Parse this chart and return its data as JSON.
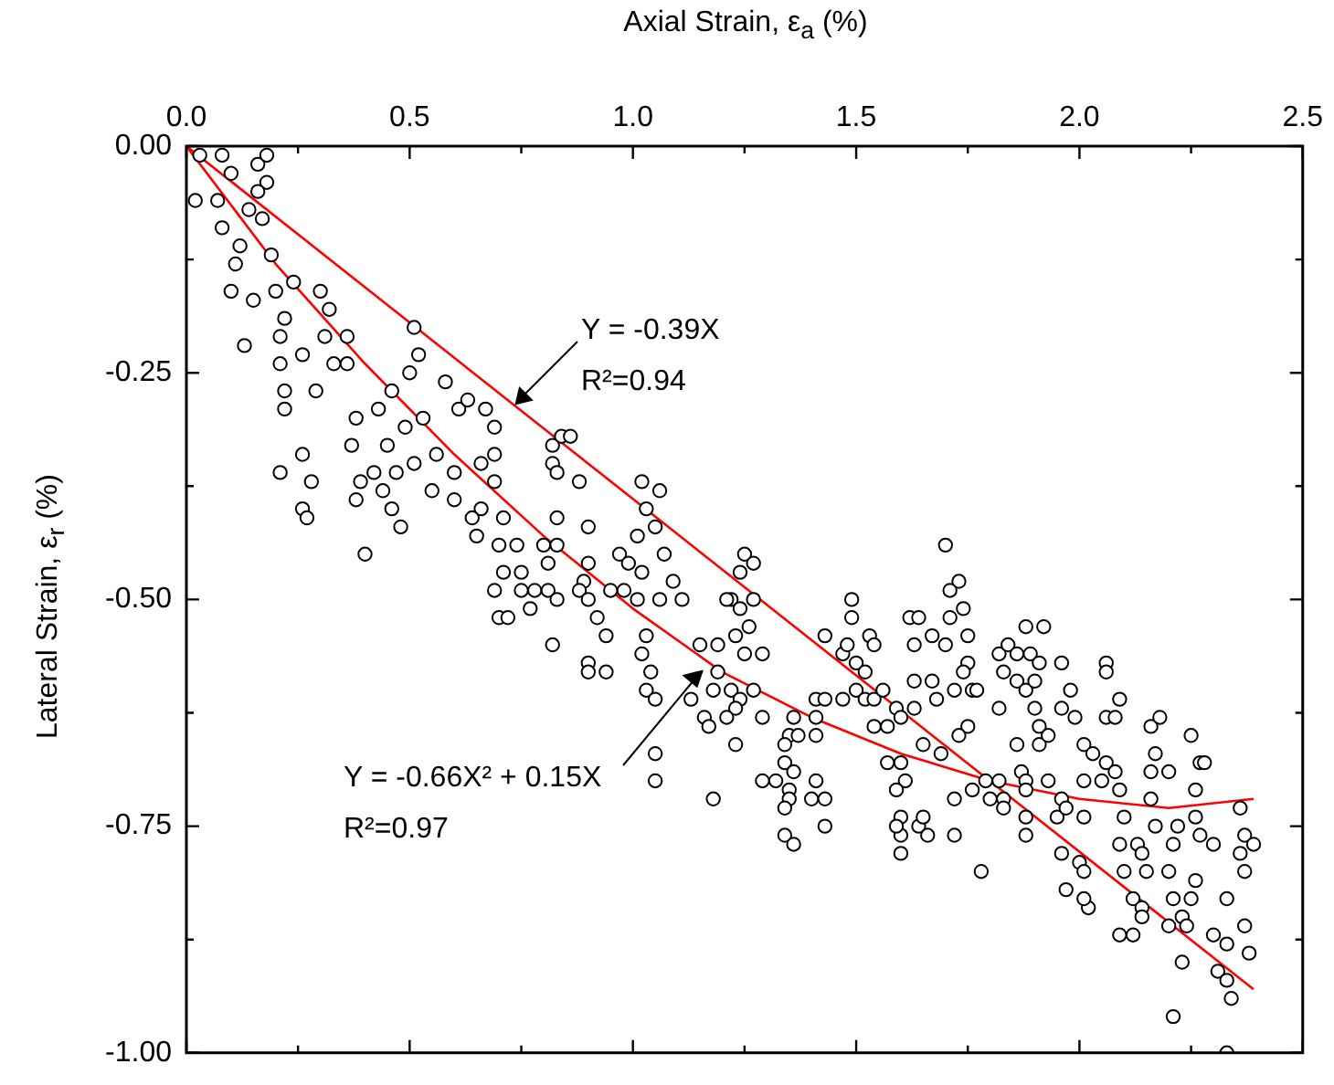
{
  "chart_data": {
    "type": "scatter",
    "xlabel": "Axial Strain, ε$_{a}$ (%)",
    "ylabel": "Lateral Strain, ε$_{r}$ (%)",
    "xlim": [
      0,
      2.5
    ],
    "ylim": [
      -1,
      0
    ],
    "xticks": [
      {
        "value": 0,
        "label": "0.0"
      },
      {
        "value": 0.25,
        "label": null
      },
      {
        "value": 0.5,
        "label": "0.5"
      },
      {
        "value": 0.75,
        "label": null
      },
      {
        "value": 1,
        "label": "1.0"
      },
      {
        "value": 1.25,
        "label": null
      },
      {
        "value": 1.5,
        "label": "1.5"
      },
      {
        "value": 1.75,
        "label": null
      },
      {
        "value": 2,
        "label": "2.0"
      },
      {
        "value": 2.25,
        "label": null
      },
      {
        "value": 2.5,
        "label": "2.5"
      }
    ],
    "yticks": [
      {
        "value": 0,
        "label": "0.00"
      },
      {
        "value": -0.125,
        "label": null
      },
      {
        "value": -0.25,
        "label": "-0.25"
      },
      {
        "value": -0.375,
        "label": null
      },
      {
        "value": -0.5,
        "label": "-0.50"
      },
      {
        "value": -0.625,
        "label": null
      },
      {
        "value": -0.75,
        "label": "-0.75"
      },
      {
        "value": -0.875,
        "label": null
      },
      {
        "value": -1,
        "label": "-1.00"
      }
    ],
    "grid": false,
    "legend": false,
    "marker": "circle",
    "series": [
      {
        "type": "scatter",
        "color": "#000000",
        "x": [
          0.03,
          0.08,
          0.1,
          0.02,
          0.16,
          0.18,
          0.18,
          0.16,
          0.07,
          0.08,
          0.14,
          0.17,
          0.12,
          0.11,
          0.19,
          0.1,
          0.15,
          0.2,
          0.24,
          0.3,
          0.22,
          0.21,
          0.13,
          0.26,
          0.32,
          0.31,
          0.36,
          0.21,
          0.22,
          0.22,
          0.29,
          0.33,
          0.36,
          0.51,
          0.52,
          0.5,
          0.46,
          0.38,
          0.43,
          0.49,
          0.53,
          0.58,
          0.61,
          0.63,
          0.67,
          0.69,
          0.37,
          0.45,
          0.26,
          0.21,
          0.28,
          0.39,
          0.42,
          0.47,
          0.51,
          0.56,
          0.6,
          0.66,
          0.69,
          0.69,
          0.26,
          0.27,
          0.38,
          0.44,
          0.46,
          0.48,
          0.55,
          0.6,
          0.66,
          0.64,
          0.65,
          0.71,
          0.4,
          0.7,
          0.74,
          0.8,
          0.83,
          0.81,
          0.71,
          0.69,
          0.75,
          0.75,
          0.78,
          0.7,
          0.72,
          0.77,
          0.81,
          0.83,
          0.82,
          0.82,
          0.84,
          0.82,
          0.86,
          0.83,
          0.88,
          1.02,
          1.06,
          1.03,
          1.01,
          1.05,
          0.9,
          0.83,
          0.97,
          0.99,
          1.02,
          1.07,
          0.9,
          0.89,
          0.88,
          0.95,
          0.98,
          1.01,
          1.06,
          1.09,
          1.11,
          0.9,
          0.92,
          0.94,
          1.03,
          1.02,
          1.04,
          0.9,
          0.9,
          0.94,
          1.03,
          1.05,
          1.25,
          1.27,
          1.24,
          1.22,
          1.24,
          1.27,
          1.21,
          1.26,
          1.23,
          1.25,
          1.29,
          1.15,
          1.19,
          1.19,
          1.22,
          1.18,
          1.24,
          1.27,
          1.13,
          1.23,
          1.29,
          1.16,
          1.17,
          1.21,
          1.23,
          1.05,
          1.05,
          1.18,
          1.36,
          1.35,
          1.34,
          1.37,
          1.41,
          1.41,
          1.43,
          1.41,
          1.34,
          1.36,
          1.29,
          1.32,
          1.35,
          1.35,
          1.34,
          1.41,
          1.4,
          1.43,
          1.43,
          1.34,
          1.36,
          1.43,
          1.49,
          1.49,
          1.47,
          1.48,
          1.5,
          1.53,
          1.54,
          1.52,
          1.47,
          1.5,
          1.52,
          1.54,
          1.56,
          1.59,
          1.57,
          1.54,
          1.6,
          1.62,
          1.64,
          1.63,
          1.67,
          1.63,
          1.67,
          1.7,
          1.57,
          1.6,
          1.61,
          1.6,
          1.6,
          1.64,
          1.66,
          1.6,
          1.65,
          1.73,
          1.71,
          1.74,
          1.71,
          1.75,
          1.7,
          1.75,
          1.74,
          1.72,
          1.76,
          1.77,
          1.68,
          1.63,
          1.75,
          1.73,
          1.69,
          1.59,
          1.65,
          1.59,
          1.72,
          1.72,
          1.76,
          1.78,
          1.8,
          1.79,
          1.82,
          1.84,
          1.88,
          1.92,
          1.86,
          1.89,
          1.91,
          1.83,
          1.86,
          1.88,
          1.9,
          1.96,
          1.98,
          1.96,
          1.99,
          1.82,
          1.9,
          1.91,
          1.91,
          1.93,
          1.86,
          1.87,
          1.88,
          1.82,
          1.83,
          1.83,
          1.88,
          1.88,
          1.88,
          1.93,
          1.95,
          1.96,
          1.97,
          1.96,
          1.97,
          2.0,
          2.01,
          2.02,
          2.01,
          2.06,
          2.06,
          2.09,
          2.06,
          2.08,
          2.01,
          2.03,
          2.06,
          2.08,
          2.01,
          2.05,
          2.09,
          2.01,
          2.1,
          2.09,
          2.13,
          2.14,
          2.15,
          2.1,
          2.12,
          2.14,
          2.14,
          2.09,
          2.12,
          2.16,
          2.18,
          2.17,
          2.16,
          2.2,
          2.16,
          2.17,
          2.22,
          2.21,
          2.2,
          2.26,
          2.27,
          2.3,
          2.21,
          2.25,
          2.23,
          2.24,
          2.2,
          2.26,
          2.25,
          2.27,
          2.28,
          2.26,
          2.36,
          2.37,
          2.39,
          2.36,
          2.37,
          2.33,
          2.37,
          2.3,
          2.33,
          2.38,
          2.23,
          2.31,
          2.33,
          2.34,
          2.21,
          2.33
        ],
        "values": [
          -0.01,
          -0.01,
          -0.03,
          -0.06,
          -0.02,
          -0.01,
          -0.04,
          -0.05,
          -0.06,
          -0.09,
          -0.07,
          -0.08,
          -0.11,
          -0.13,
          -0.12,
          -0.16,
          -0.17,
          -0.16,
          -0.15,
          -0.16,
          -0.19,
          -0.21,
          -0.22,
          -0.23,
          -0.18,
          -0.21,
          -0.21,
          -0.24,
          -0.27,
          -0.29,
          -0.27,
          -0.24,
          -0.24,
          -0.2,
          -0.23,
          -0.25,
          -0.27,
          -0.3,
          -0.29,
          -0.31,
          -0.3,
          -0.26,
          -0.29,
          -0.28,
          -0.29,
          -0.31,
          -0.33,
          -0.33,
          -0.34,
          -0.36,
          -0.37,
          -0.37,
          -0.36,
          -0.36,
          -0.35,
          -0.34,
          -0.36,
          -0.35,
          -0.34,
          -0.37,
          -0.4,
          -0.41,
          -0.39,
          -0.38,
          -0.4,
          -0.42,
          -0.38,
          -0.39,
          -0.4,
          -0.41,
          -0.43,
          -0.41,
          -0.45,
          -0.44,
          -0.44,
          -0.44,
          -0.41,
          -0.46,
          -0.47,
          -0.49,
          -0.47,
          -0.49,
          -0.49,
          -0.52,
          -0.52,
          -0.51,
          -0.49,
          -0.5,
          -0.55,
          -0.33,
          -0.32,
          -0.35,
          -0.32,
          -0.36,
          -0.37,
          -0.37,
          -0.38,
          -0.4,
          -0.43,
          -0.42,
          -0.42,
          -0.44,
          -0.45,
          -0.46,
          -0.47,
          -0.45,
          -0.46,
          -0.48,
          -0.49,
          -0.49,
          -0.49,
          -0.5,
          -0.5,
          -0.48,
          -0.5,
          -0.5,
          -0.52,
          -0.54,
          -0.54,
          -0.56,
          -0.58,
          -0.57,
          -0.58,
          -0.58,
          -0.6,
          -0.61,
          -0.45,
          -0.46,
          -0.47,
          -0.5,
          -0.51,
          -0.5,
          -0.5,
          -0.53,
          -0.54,
          -0.56,
          -0.56,
          -0.55,
          -0.55,
          -0.58,
          -0.6,
          -0.6,
          -0.61,
          -0.6,
          -0.61,
          -0.62,
          -0.63,
          -0.63,
          -0.64,
          -0.63,
          -0.66,
          -0.67,
          -0.7,
          -0.72,
          -0.63,
          -0.65,
          -0.66,
          -0.65,
          -0.65,
          -0.61,
          -0.61,
          -0.63,
          -0.68,
          -0.69,
          -0.7,
          -0.7,
          -0.71,
          -0.72,
          -0.73,
          -0.7,
          -0.72,
          -0.72,
          -0.75,
          -0.76,
          -0.77,
          -0.54,
          -0.5,
          -0.52,
          -0.56,
          -0.55,
          -0.57,
          -0.54,
          -0.55,
          -0.58,
          -0.61,
          -0.6,
          -0.61,
          -0.61,
          -0.6,
          -0.62,
          -0.64,
          -0.64,
          -0.63,
          -0.52,
          -0.52,
          -0.55,
          -0.54,
          -0.59,
          -0.59,
          -0.44,
          -0.68,
          -0.68,
          -0.7,
          -0.74,
          -0.76,
          -0.75,
          -0.76,
          -0.78,
          -0.66,
          -0.48,
          -0.49,
          -0.51,
          -0.52,
          -0.54,
          -0.55,
          -0.57,
          -0.58,
          -0.6,
          -0.6,
          -0.6,
          -0.61,
          -0.62,
          -0.64,
          -0.65,
          -0.67,
          -0.71,
          -0.74,
          -0.75,
          -0.76,
          -0.72,
          -0.71,
          -0.8,
          -0.72,
          -0.7,
          -0.56,
          -0.55,
          -0.53,
          -0.53,
          -0.56,
          -0.56,
          -0.57,
          -0.58,
          -0.59,
          -0.6,
          -0.59,
          -0.57,
          -0.6,
          -0.62,
          -0.63,
          -0.62,
          -0.62,
          -0.64,
          -0.66,
          -0.65,
          -0.66,
          -0.69,
          -0.7,
          -0.7,
          -0.72,
          -0.73,
          -0.71,
          -0.74,
          -0.76,
          -0.7,
          -0.74,
          -0.72,
          -0.73,
          -0.78,
          -0.82,
          -0.79,
          -0.8,
          -0.84,
          -0.83,
          -0.57,
          -0.58,
          -0.61,
          -0.63,
          -0.63,
          -0.66,
          -0.67,
          -0.68,
          -0.69,
          -0.7,
          -0.7,
          -0.71,
          -0.74,
          -0.74,
          -0.77,
          -0.77,
          -0.78,
          -0.8,
          -0.8,
          -0.83,
          -0.84,
          -0.85,
          -0.87,
          -0.87,
          -0.64,
          -0.63,
          -0.67,
          -0.69,
          -0.69,
          -0.72,
          -0.75,
          -0.75,
          -0.77,
          -0.8,
          -0.74,
          -0.76,
          -0.77,
          -0.83,
          -0.83,
          -0.85,
          -0.86,
          -0.86,
          -0.81,
          -0.65,
          -0.68,
          -0.68,
          -0.71,
          -0.73,
          -0.76,
          -0.77,
          -0.78,
          -0.8,
          -0.83,
          -0.86,
          -0.87,
          -0.88,
          -0.89,
          -0.9,
          -0.91,
          -0.92,
          -0.94,
          -0.96,
          -1.0
        ]
      },
      {
        "type": "line",
        "color": "#ff0000",
        "marker": "none",
        "x": [
          0,
          2.39
        ],
        "values": [
          0,
          -0.93
        ]
      },
      {
        "type": "line",
        "color": "#ff0000",
        "marker": "none",
        "x": [
          0,
          0.2,
          0.4,
          0.6,
          0.8,
          1.0,
          1.2,
          1.4,
          1.6,
          1.8,
          2.0,
          2.2,
          2.39
        ],
        "values": [
          0,
          -0.13,
          -0.24,
          -0.34,
          -0.43,
          -0.51,
          -0.58,
          -0.63,
          -0.67,
          -0.7,
          -0.72,
          -0.73,
          -0.72
        ]
      }
    ],
    "annotations": [
      "Y = -0.39X",
      "R²=0.94",
      "Y = -0.66X² + 0.15X",
      "R²=0.97"
    ]
  }
}
